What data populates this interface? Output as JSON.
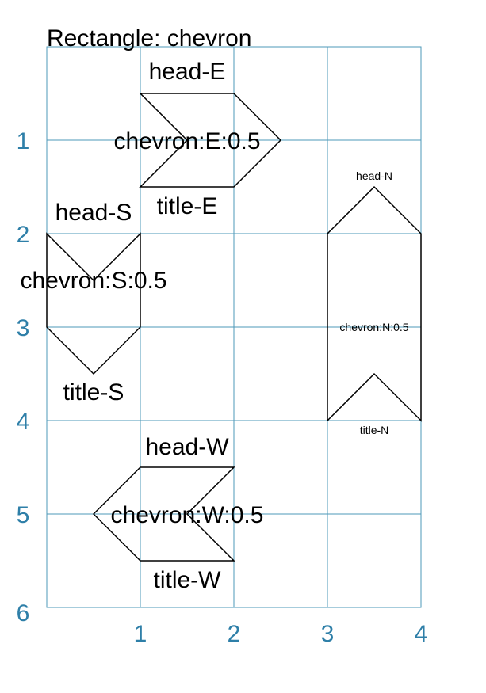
{
  "title": "Rectangle: chevron",
  "colors": {
    "grid": "#4e99b8",
    "axis_numbers": "#2e7fa8",
    "shape_stroke": "#000000"
  },
  "axes": {
    "x_ticks": [
      "1",
      "2",
      "3",
      "4"
    ],
    "y_ticks": [
      "1",
      "2",
      "3",
      "4",
      "5",
      "6"
    ]
  },
  "shapes": {
    "east": {
      "head": "head-E",
      "label": "chevron:E:0.5",
      "tail": "title-E"
    },
    "south": {
      "head": "head-S",
      "label": "chevron:S:0.5",
      "tail": "title-S"
    },
    "north": {
      "head": "head-N",
      "label": "chevron:N:0.5",
      "tail": "title-N"
    },
    "west": {
      "head": "head-W",
      "label": "chevron:W:0.5",
      "tail": "title-W"
    }
  }
}
